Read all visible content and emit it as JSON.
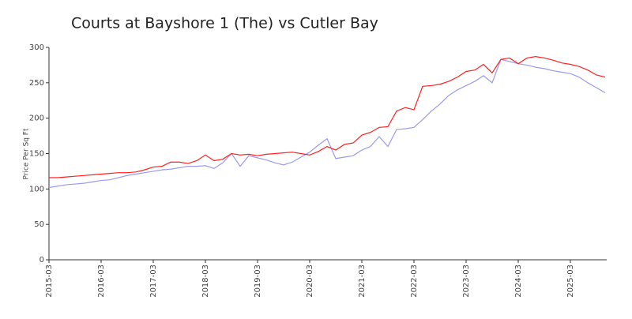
{
  "chart_data": {
    "type": "line",
    "title": "Courts at Bayshore 1 (The) vs Cutler Bay",
    "y_label": "Price Per Sq Ft",
    "x": [
      "2015-03",
      "2015-05",
      "2015-07",
      "2015-09",
      "2015-11",
      "2016-01",
      "2016-03",
      "2016-05",
      "2016-07",
      "2016-09",
      "2016-11",
      "2017-01",
      "2017-03",
      "2017-05",
      "2017-07",
      "2017-09",
      "2017-11",
      "2018-01",
      "2018-03",
      "2018-05",
      "2018-07",
      "2018-09",
      "2018-11",
      "2019-01",
      "2019-03",
      "2019-05",
      "2019-07",
      "2019-09",
      "2019-11",
      "2020-01",
      "2020-03",
      "2020-05",
      "2020-07",
      "2020-09",
      "2020-11",
      "2021-01",
      "2021-03",
      "2021-05",
      "2021-07",
      "2021-09",
      "2021-11",
      "2022-01",
      "2022-03",
      "2022-05",
      "2022-07",
      "2022-09",
      "2022-11",
      "2023-01",
      "2023-03",
      "2023-05",
      "2023-07",
      "2023-09",
      "2023-11",
      "2024-01",
      "2024-03",
      "2024-05",
      "2024-07",
      "2024-09",
      "2024-11",
      "2025-01",
      "2025-03",
      "2025-05",
      "2025-07",
      "2025-09",
      "2025-11"
    ],
    "series": [
      {
        "color": "#ff2020",
        "values": [
          116,
          116,
          117,
          118,
          119,
          120,
          121,
          122,
          123,
          123,
          124,
          127,
          131,
          132,
          138,
          138,
          136,
          140,
          148,
          140,
          142,
          150,
          148,
          149,
          147,
          149,
          150,
          151,
          152,
          150,
          148,
          153,
          160,
          155,
          163,
          165,
          176,
          180,
          187,
          188,
          210,
          215,
          212,
          245,
          246,
          248,
          252,
          258,
          266,
          268,
          276,
          264,
          283,
          285,
          277,
          285,
          287,
          285,
          282,
          278,
          276,
          273,
          268,
          261,
          258
        ]
      },
      {
        "color": "#9a9af0",
        "values": [
          102,
          104,
          106,
          107,
          108,
          110,
          112,
          113,
          116,
          119,
          121,
          123,
          125,
          127,
          128,
          130,
          132,
          132,
          133,
          129,
          137,
          150,
          132,
          147,
          144,
          141,
          137,
          134,
          138,
          145,
          152,
          162,
          171,
          143,
          145,
          147,
          155,
          160,
          174,
          160,
          184,
          185,
          187,
          198,
          210,
          220,
          232,
          240,
          246,
          252,
          260,
          250,
          283,
          280,
          277,
          275,
          272,
          270,
          267,
          265,
          263,
          258,
          250,
          243,
          236
        ]
      }
    ],
    "xticks": [
      "2015-03",
      "2016-03",
      "2017-03",
      "2018-03",
      "2019-03",
      "2020-03",
      "2021-03",
      "2022-03",
      "2023-03",
      "2024-03",
      "2025-03"
    ],
    "ylim": [
      0,
      300
    ],
    "yticks": [
      0,
      50,
      100,
      150,
      200,
      250,
      300
    ],
    "grid": false
  }
}
